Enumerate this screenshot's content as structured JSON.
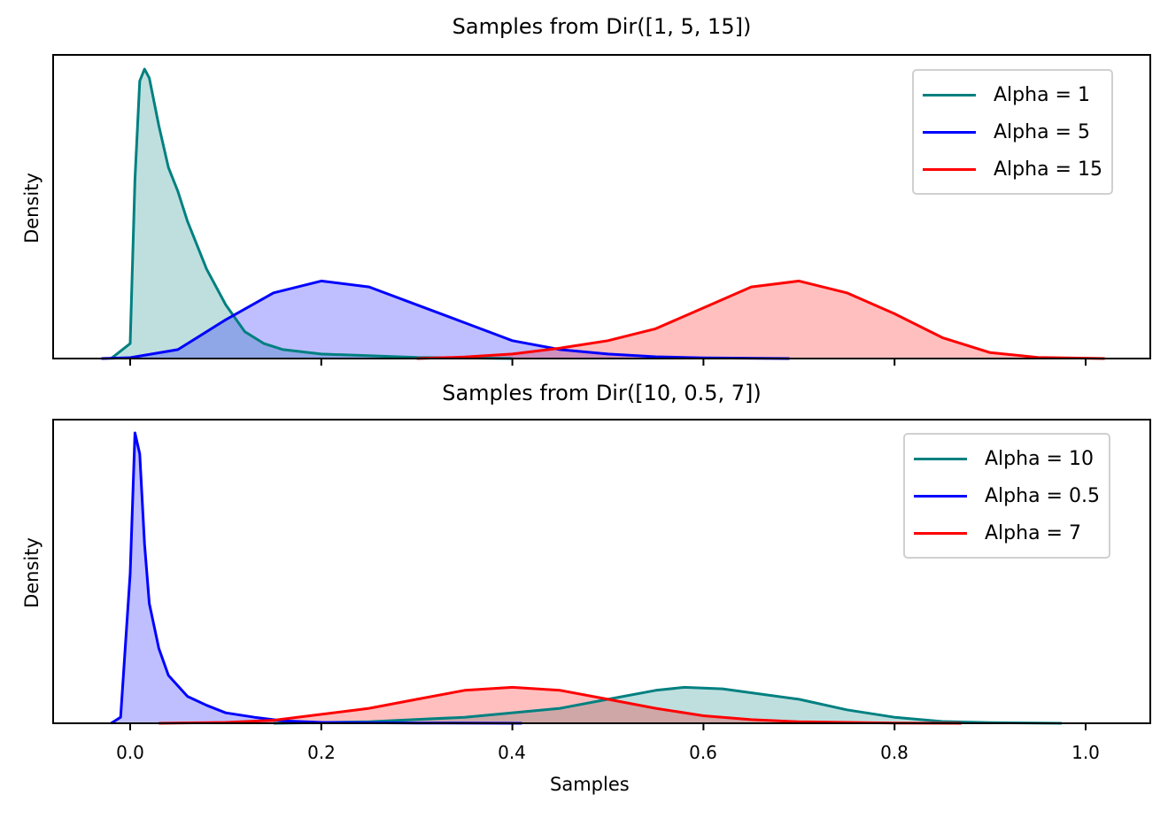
{
  "chart_data": [
    {
      "type": "area",
      "subtype": "kde",
      "title": "Samples from Dir([1, 5, 15])",
      "xlabel": "",
      "ylabel": "Density",
      "xlim": [
        -0.08,
        1.07
      ],
      "xticks": [
        0.0,
        0.2,
        0.4,
        0.6,
        0.8,
        1.0
      ],
      "yticks_visible": false,
      "legend_position": "upper right",
      "series": [
        {
          "name": "Alpha = 1",
          "color": "#008080",
          "fill": "rgba(0,128,128,0.25)",
          "x": [
            -0.02,
            0.0,
            0.005,
            0.01,
            0.015,
            0.02,
            0.03,
            0.04,
            0.05,
            0.06,
            0.08,
            0.1,
            0.12,
            0.14,
            0.16,
            0.2,
            0.3,
            0.4
          ],
          "y": [
            0.0,
            0.05,
            0.6,
            0.93,
            0.97,
            0.94,
            0.78,
            0.64,
            0.56,
            0.46,
            0.3,
            0.18,
            0.09,
            0.05,
            0.03,
            0.015,
            0.004,
            0.0
          ]
        },
        {
          "name": "Alpha = 5",
          "color": "#0000ff",
          "fill": "rgba(0,0,255,0.25)",
          "x": [
            -0.03,
            0.0,
            0.05,
            0.1,
            0.15,
            0.2,
            0.25,
            0.3,
            0.35,
            0.4,
            0.45,
            0.5,
            0.55,
            0.6,
            0.69
          ],
          "y": [
            0.0,
            0.003,
            0.03,
            0.13,
            0.22,
            0.26,
            0.24,
            0.18,
            0.12,
            0.06,
            0.03,
            0.015,
            0.006,
            0.002,
            0.0
          ]
        },
        {
          "name": "Alpha = 15",
          "color": "#ff0000",
          "fill": "rgba(255,0,0,0.25)",
          "x": [
            0.3,
            0.35,
            0.4,
            0.45,
            0.5,
            0.55,
            0.6,
            0.65,
            0.7,
            0.75,
            0.8,
            0.85,
            0.9,
            0.95,
            1.02
          ],
          "y": [
            0.0,
            0.005,
            0.015,
            0.035,
            0.06,
            0.1,
            0.17,
            0.24,
            0.26,
            0.22,
            0.15,
            0.07,
            0.02,
            0.004,
            0.0
          ]
        }
      ]
    },
    {
      "type": "area",
      "subtype": "kde",
      "title": "Samples from Dir([10, 0.5, 7])",
      "xlabel": "Samples",
      "ylabel": "Density",
      "xlim": [
        -0.08,
        1.07
      ],
      "xticks": [
        0.0,
        0.2,
        0.4,
        0.6,
        0.8,
        1.0
      ],
      "yticks_visible": false,
      "legend_position": "upper right",
      "series": [
        {
          "name": "Alpha = 10",
          "color": "#008080",
          "fill": "rgba(0,128,128,0.25)",
          "x": [
            0.15,
            0.25,
            0.35,
            0.45,
            0.5,
            0.55,
            0.58,
            0.62,
            0.7,
            0.75,
            0.8,
            0.85,
            0.9,
            0.975
          ],
          "y": [
            0.0,
            0.005,
            0.02,
            0.05,
            0.08,
            0.11,
            0.12,
            0.115,
            0.08,
            0.045,
            0.02,
            0.006,
            0.002,
            0.0
          ]
        },
        {
          "name": "Alpha = 0.5",
          "color": "#0000ff",
          "fill": "rgba(0,0,255,0.25)",
          "x": [
            -0.02,
            -0.01,
            0.0,
            0.005,
            0.01,
            0.015,
            0.02,
            0.03,
            0.04,
            0.06,
            0.08,
            0.1,
            0.13,
            0.16,
            0.2,
            0.3,
            0.41
          ],
          "y": [
            0.0,
            0.02,
            0.5,
            0.97,
            0.9,
            0.6,
            0.4,
            0.25,
            0.16,
            0.09,
            0.06,
            0.035,
            0.02,
            0.008,
            0.003,
            0.001,
            0.0
          ]
        },
        {
          "name": "Alpha = 7",
          "color": "#ff0000",
          "fill": "rgba(255,0,0,0.25)",
          "x": [
            0.03,
            0.1,
            0.15,
            0.2,
            0.25,
            0.3,
            0.35,
            0.4,
            0.45,
            0.5,
            0.55,
            0.6,
            0.65,
            0.7,
            0.8,
            0.87
          ],
          "y": [
            0.0,
            0.003,
            0.01,
            0.03,
            0.05,
            0.08,
            0.11,
            0.12,
            0.11,
            0.08,
            0.05,
            0.025,
            0.012,
            0.005,
            0.001,
            0.0
          ]
        }
      ]
    }
  ],
  "top": {
    "title": "Samples from Dir([1, 5, 15])",
    "ylabel": "Density",
    "legend": [
      "Alpha = 1",
      "Alpha = 5",
      "Alpha = 15"
    ]
  },
  "bottom": {
    "title": "Samples from Dir([10, 0.5, 7])",
    "ylabel": "Density",
    "xlabel": "Samples",
    "legend": [
      "Alpha = 10",
      "Alpha = 0.5",
      "Alpha = 7"
    ],
    "ticks": [
      "0.0",
      "0.2",
      "0.4",
      "0.6",
      "0.8",
      "1.0"
    ]
  }
}
